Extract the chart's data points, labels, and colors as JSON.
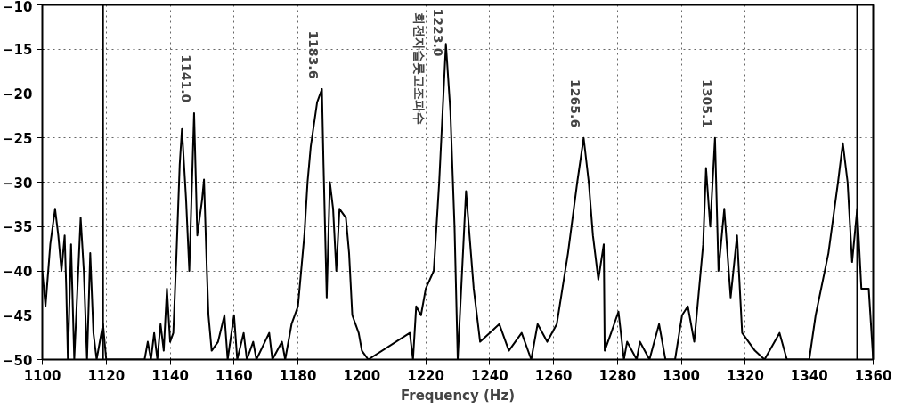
{
  "chart_data": {
    "type": "line",
    "xlabel": "Frequency (Hz)",
    "xlim": [
      1100,
      1360
    ],
    "xticks": [
      1100,
      1120,
      1140,
      1160,
      1180,
      1200,
      1220,
      1240,
      1260,
      1280,
      1300,
      1320,
      1340,
      1360
    ],
    "ylim": [
      -50,
      -10
    ],
    "yticks": [
      -50,
      -45,
      -40,
      -35,
      -30,
      -25,
      -20,
      -15,
      -10
    ],
    "grid": true,
    "line_style": "solid",
    "series": [
      {
        "color": "#000000",
        "x": [
          1100,
          1101,
          1102.5,
          1104,
          1105,
          1106,
          1107,
          1107.5,
          1108,
          1109,
          1110,
          1112,
          1113,
          1114,
          1115,
          1116,
          1117,
          1119,
          1120,
          1132,
          1133,
          1134,
          1135,
          1136,
          1137,
          1138,
          1139,
          1140,
          1141,
          1142,
          1143,
          1143.7,
          1145,
          1146,
          1147.5,
          1148.5,
          1150,
          1150.6,
          1151.5,
          1152,
          1153,
          1155,
          1157,
          1158,
          1160,
          1161,
          1163,
          1164,
          1166,
          1167,
          1171,
          1172,
          1175,
          1176,
          1178,
          1180,
          1182,
          1183,
          1184,
          1186,
          1187.5,
          1188,
          1189,
          1190,
          1191,
          1192,
          1193,
          1195,
          1196,
          1197,
          1199,
          1200,
          1202,
          1215,
          1216,
          1217,
          1218.5,
          1220,
          1222.5,
          1224.2,
          1226.3,
          1227.7,
          1229,
          1230,
          1232.6,
          1235,
          1237,
          1240,
          1243,
          1246,
          1250,
          1253,
          1255,
          1258,
          1261,
          1264.5,
          1267.4,
          1269.4,
          1271,
          1272.3,
          1274,
          1275.7,
          1276,
          1278,
          1280.3,
          1282,
          1283,
          1286,
          1287,
          1290,
          1293,
          1295,
          1298,
          1300.2,
          1302,
          1304,
          1306.8,
          1307.7,
          1309,
          1310.5,
          1311.6,
          1313.4,
          1315.4,
          1317.4,
          1319,
          1323,
          1326,
          1330.7,
          1333,
          1340,
          1342,
          1346,
          1349,
          1350.5,
          1352,
          1353.4,
          1355,
          1356.3,
          1358.6,
          1360
        ],
        "values": [
          -40,
          -44,
          -37,
          -33,
          -36,
          -40,
          -36,
          -42,
          -50,
          -37,
          -50,
          -34,
          -40,
          -50,
          -38,
          -47,
          -50,
          -46,
          -50,
          -50,
          -48,
          -50,
          -47,
          -50,
          -46,
          -49,
          -42,
          -48,
          -47,
          -38,
          -28,
          -24,
          -32,
          -40,
          -22.2,
          -36,
          -32,
          -29.7,
          -40,
          -45,
          -49,
          -48,
          -45,
          -50,
          -45,
          -50,
          -47,
          -50,
          -48,
          -50,
          -47,
          -50,
          -48,
          -50,
          -46,
          -44,
          -36,
          -30,
          -26,
          -21,
          -19.5,
          -28,
          -43,
          -30,
          -33,
          -40,
          -33,
          -34,
          -38,
          -45,
          -47,
          -49,
          -50,
          -47,
          -50,
          -44,
          -45,
          -42,
          -40,
          -30,
          -14.4,
          -22,
          -35,
          -50,
          -31,
          -42,
          -48,
          -47,
          -46,
          -49,
          -47,
          -50,
          -46,
          -48,
          -46,
          -38,
          -30,
          -25,
          -30,
          -36,
          -41,
          -37,
          -49,
          -47,
          -44.6,
          -50,
          -48,
          -50,
          -48,
          -50,
          -46,
          -50,
          -50,
          -45,
          -44,
          -48,
          -37,
          -28.4,
          -35,
          -25,
          -40,
          -33,
          -43,
          -36,
          -47,
          -49,
          -50,
          -47,
          -50,
          -50,
          -45,
          -38,
          -30,
          -25.6,
          -30,
          -39,
          -33,
          -42,
          -42,
          -50
        ]
      }
    ],
    "ref_lines": [
      {
        "axis": "x",
        "value": 1119
      },
      {
        "axis": "x",
        "value": 1355
      }
    ],
    "annotations": [
      {
        "text": "1141.0",
        "x": 1147.5,
        "y": -22.2
      },
      {
        "text": "1183.6",
        "x": 1187.5,
        "y": -19.5
      },
      "회전자슬롯고조파수",
      {
        "text": "1223.0",
        "x": 1226.3,
        "y": -14.4
      },
      {
        "text": "1265.6",
        "x": 1269.4,
        "y": -25
      },
      {
        "text": "1305.1",
        "x": 1310.5,
        "y": -25
      }
    ]
  }
}
